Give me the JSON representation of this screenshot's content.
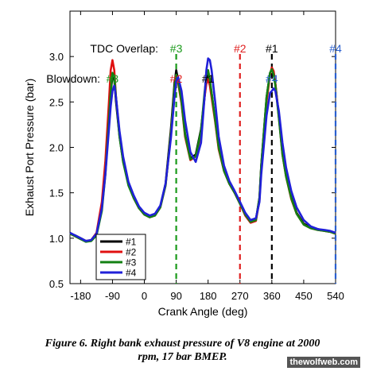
{
  "chart_data": {
    "type": "line",
    "xlabel": "Crank Angle (deg)",
    "ylabel": "Exhaust Port Pressure (bar)",
    "xlim": [
      -210,
      540
    ],
    "ylim": [
      0.5,
      3.5
    ],
    "xticks": [
      -180,
      -90,
      0,
      90,
      180,
      270,
      360,
      450,
      540
    ],
    "yticks": [
      0.5,
      1.0,
      1.5,
      2.0,
      2.5,
      3.0
    ],
    "ytick_labels": [
      "0.5",
      "1.0",
      "1.5",
      "2.0",
      "2.5",
      "3.0"
    ],
    "grid": false,
    "legend_position": "lower-left",
    "series": [
      {
        "name": "#1",
        "color": "#000000",
        "x": [
          -210,
          -195,
          -180,
          -165,
          -150,
          -135,
          -120,
          -110,
          -100,
          -95,
          -90,
          -85,
          -80,
          -70,
          -60,
          -45,
          -30,
          -15,
          0,
          15,
          30,
          45,
          60,
          75,
          85,
          90,
          95,
          105,
          115,
          130,
          145,
          160,
          170,
          175,
          180,
          185,
          190,
          200,
          210,
          225,
          240,
          255,
          270,
          285,
          300,
          315,
          325,
          330,
          345,
          355,
          360,
          365,
          370,
          380,
          390,
          400,
          415,
          430,
          450,
          470,
          490,
          510,
          525,
          540
        ],
        "y": [
          1.05,
          1.03,
          1.0,
          0.97,
          0.97,
          1.04,
          1.35,
          1.75,
          2.35,
          2.6,
          2.78,
          2.75,
          2.5,
          2.12,
          1.85,
          1.6,
          1.45,
          1.34,
          1.27,
          1.24,
          1.26,
          1.35,
          1.6,
          2.2,
          2.7,
          2.85,
          2.75,
          2.5,
          2.15,
          1.88,
          1.92,
          2.2,
          2.55,
          2.75,
          2.8,
          2.72,
          2.6,
          2.3,
          2.0,
          1.75,
          1.6,
          1.5,
          1.38,
          1.26,
          1.18,
          1.2,
          1.45,
          1.8,
          2.55,
          2.82,
          2.85,
          2.82,
          2.7,
          2.35,
          1.95,
          1.7,
          1.45,
          1.28,
          1.16,
          1.12,
          1.1,
          1.08,
          1.07,
          1.05
        ]
      },
      {
        "name": "#2",
        "color": "#e01010",
        "x": [
          -210,
          -195,
          -180,
          -165,
          -150,
          -135,
          -120,
          -110,
          -100,
          -95,
          -90,
          -85,
          -80,
          -70,
          -60,
          -45,
          -30,
          -15,
          0,
          15,
          30,
          45,
          60,
          75,
          85,
          90,
          95,
          105,
          115,
          130,
          145,
          160,
          170,
          175,
          180,
          185,
          190,
          200,
          210,
          225,
          240,
          255,
          270,
          285,
          300,
          315,
          325,
          330,
          345,
          355,
          360,
          365,
          370,
          380,
          390,
          400,
          415,
          430,
          450,
          470,
          490,
          510,
          525,
          540
        ],
        "y": [
          1.05,
          1.02,
          0.99,
          0.97,
          0.98,
          1.06,
          1.4,
          1.85,
          2.5,
          2.85,
          2.96,
          2.85,
          2.55,
          2.15,
          1.86,
          1.6,
          1.44,
          1.33,
          1.26,
          1.23,
          1.25,
          1.34,
          1.58,
          2.15,
          2.65,
          2.78,
          2.72,
          2.48,
          2.12,
          1.86,
          1.9,
          2.15,
          2.55,
          2.7,
          2.75,
          2.68,
          2.55,
          2.28,
          1.98,
          1.74,
          1.6,
          1.5,
          1.38,
          1.25,
          1.17,
          1.19,
          1.42,
          1.78,
          2.5,
          2.8,
          2.88,
          2.84,
          2.7,
          2.33,
          1.92,
          1.68,
          1.43,
          1.27,
          1.15,
          1.11,
          1.09,
          1.08,
          1.07,
          1.05
        ]
      },
      {
        "name": "#3",
        "color": "#138013",
        "x": [
          -210,
          -195,
          -180,
          -165,
          -150,
          -135,
          -120,
          -110,
          -100,
          -95,
          -90,
          -85,
          -80,
          -70,
          -60,
          -45,
          -30,
          -15,
          0,
          15,
          30,
          45,
          60,
          75,
          85,
          90,
          95,
          105,
          115,
          130,
          145,
          160,
          170,
          175,
          180,
          185,
          190,
          200,
          210,
          225,
          240,
          255,
          270,
          285,
          300,
          315,
          325,
          330,
          345,
          355,
          360,
          365,
          370,
          380,
          390,
          400,
          415,
          430,
          450,
          470,
          490,
          510,
          525,
          540
        ],
        "y": [
          1.05,
          1.02,
          0.99,
          0.96,
          0.97,
          1.03,
          1.3,
          1.7,
          2.3,
          2.6,
          2.82,
          2.78,
          2.55,
          2.12,
          1.84,
          1.58,
          1.44,
          1.33,
          1.26,
          1.23,
          1.25,
          1.34,
          1.58,
          2.15,
          2.65,
          2.8,
          2.75,
          2.5,
          2.14,
          1.87,
          1.9,
          2.18,
          2.6,
          2.78,
          2.85,
          2.75,
          2.6,
          2.3,
          2.0,
          1.74,
          1.6,
          1.5,
          1.38,
          1.26,
          1.18,
          1.2,
          1.44,
          1.8,
          2.55,
          2.82,
          2.86,
          2.8,
          2.68,
          2.32,
          1.92,
          1.68,
          1.44,
          1.27,
          1.15,
          1.11,
          1.09,
          1.08,
          1.07,
          1.05
        ]
      },
      {
        "name": "#4",
        "color": "#2020d8",
        "x": [
          -210,
          -195,
          -180,
          -165,
          -150,
          -135,
          -120,
          -110,
          -100,
          -95,
          -90,
          -85,
          -80,
          -70,
          -60,
          -45,
          -30,
          -15,
          0,
          15,
          30,
          45,
          60,
          75,
          85,
          90,
          95,
          105,
          115,
          130,
          145,
          160,
          170,
          175,
          180,
          185,
          190,
          200,
          210,
          225,
          240,
          255,
          270,
          285,
          300,
          315,
          325,
          330,
          345,
          355,
          360,
          365,
          370,
          380,
          390,
          400,
          415,
          430,
          450,
          470,
          490,
          510,
          525,
          540
        ],
        "y": [
          1.06,
          1.03,
          1.0,
          0.97,
          0.98,
          1.05,
          1.33,
          1.7,
          2.2,
          2.45,
          2.62,
          2.68,
          2.55,
          2.18,
          1.9,
          1.62,
          1.47,
          1.35,
          1.28,
          1.25,
          1.27,
          1.36,
          1.6,
          2.1,
          2.55,
          2.72,
          2.78,
          2.62,
          2.3,
          1.95,
          1.84,
          2.05,
          2.55,
          2.85,
          2.98,
          2.96,
          2.85,
          2.5,
          2.12,
          1.8,
          1.63,
          1.52,
          1.4,
          1.28,
          1.2,
          1.22,
          1.4,
          1.7,
          2.35,
          2.6,
          2.62,
          2.65,
          2.62,
          2.4,
          2.05,
          1.78,
          1.52,
          1.34,
          1.2,
          1.13,
          1.1,
          1.09,
          1.08,
          1.06
        ]
      }
    ],
    "vlines": [
      {
        "x": 90,
        "color": "#1a9a1a"
      },
      {
        "x": 270,
        "color": "#e02020"
      },
      {
        "x": 360,
        "color": "#000000"
      },
      {
        "x": 540,
        "color": "#2a60d0"
      }
    ],
    "annotations": {
      "tdc_label": "TDC Overlap:",
      "blowdown_label": "Blowdown:",
      "tdc_marks": [
        {
          "text": "#3",
          "x": 90,
          "color": "#1a9a1a"
        },
        {
          "text": "#2",
          "x": 270,
          "color": "#e02020"
        },
        {
          "text": "#1",
          "x": 360,
          "color": "#000000"
        },
        {
          "text": "#4",
          "x": 540,
          "color": "#2a60d0"
        }
      ],
      "blowdown_marks": [
        {
          "text": "#3",
          "x": -90,
          "color": "#1a9a1a"
        },
        {
          "text": "#2",
          "x": 90,
          "color": "#e02020"
        },
        {
          "text": "#1",
          "x": 180,
          "color": "#000000"
        },
        {
          "text": "#4",
          "x": 360,
          "color": "#2a60d0"
        }
      ]
    }
  },
  "caption_line1": "Figure 6. Right bank exhaust pressure of V8 engine at 2000",
  "caption_line2": "rpm, 17 bar BMEP.",
  "watermark": "thewolfweb.com"
}
